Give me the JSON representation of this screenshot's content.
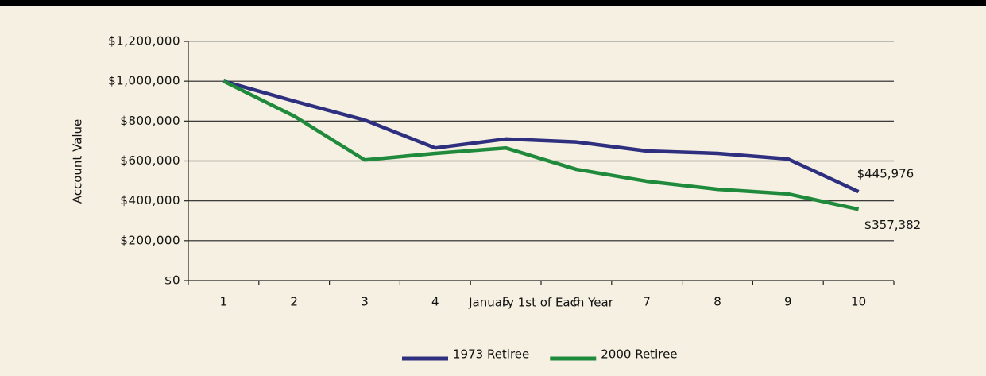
{
  "chart_data": {
    "type": "line",
    "x_label": "January 1st of Each Year",
    "y_label": "Account Value",
    "categories": [
      "1",
      "2",
      "3",
      "4",
      "5",
      "6",
      "7",
      "8",
      "9",
      "10"
    ],
    "series": [
      {
        "name": "1973 Retiree",
        "color": "#2e2f7f",
        "values": [
          1000000,
          900000,
          805000,
          665000,
          710000,
          695000,
          650000,
          638000,
          610000,
          445976
        ],
        "value_labels": [
          null,
          null,
          null,
          null,
          null,
          null,
          null,
          null,
          null,
          "$445,976"
        ]
      },
      {
        "name": "2000 Retiree",
        "color": "#1f8a3c",
        "values": [
          1000000,
          825000,
          605000,
          638000,
          665000,
          558000,
          498000,
          458000,
          435000,
          357382
        ],
        "value_labels": [
          null,
          null,
          null,
          null,
          null,
          null,
          null,
          null,
          null,
          "$357,382"
        ]
      }
    ],
    "ylim": [
      0,
      1200000
    ],
    "yticks": [
      {
        "value": 0,
        "label": "$0"
      },
      {
        "value": 200000,
        "label": "$200,000"
      },
      {
        "value": 400000,
        "label": "$400,000"
      },
      {
        "value": 600000,
        "label": "$600,000"
      },
      {
        "value": 800000,
        "label": "$800,000"
      },
      {
        "value": 1000000,
        "label": "$1,000,000"
      },
      {
        "value": 1200000,
        "label": "$1,200,000"
      }
    ],
    "grid": true,
    "legend": "bottom"
  }
}
